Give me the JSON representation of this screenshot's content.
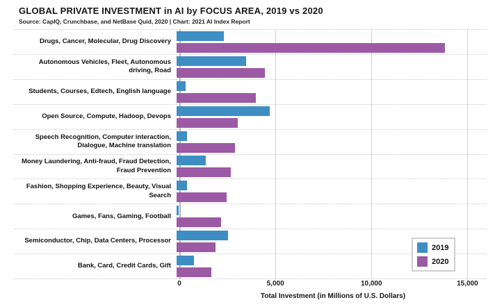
{
  "header": {
    "title": "GLOBAL PRIVATE INVESTMENT in AI by FOCUS AREA, 2019 vs 2020",
    "source": "Source: CapIQ, Crunchbase, and NetBase Quid, 2020 | Chart: 2021 AI Index Report"
  },
  "chart_data": {
    "type": "bar",
    "orientation": "horizontal",
    "title": "GLOBAL PRIVATE INVESTMENT in AI by FOCUS AREA, 2019 vs 2020",
    "xlabel": "Total Investment (in Millions of U.S. Dollars)",
    "ylabel": "",
    "xlim": [
      0,
      16000
    ],
    "grid": "vertical-solid, row-separators-dotted",
    "xticks": [
      {
        "value": 0,
        "label": "0"
      },
      {
        "value": 5000,
        "label": "5,000"
      },
      {
        "value": 10000,
        "label": "10,000"
      },
      {
        "value": 15000,
        "label": "15,000"
      }
    ],
    "categories": [
      "Drugs, Cancer, Molecular, Drug Discovery",
      "Autonomous Vehicles, Fleet, Autonomous driving, Road",
      "Students, Courses, Edtech, English language",
      "Open Source, Compute, Hadoop, Devops",
      "Speech Recognition, Computer interaction, Dialogue, Machine translation",
      "Money Laundering, Anti-fraud, Fraud Detection, Fraud Prevention",
      "Fashion, Shopping Experience, Beauty, Visual Search",
      "Games, Fans, Gaming, Football",
      "Semiconductor, Chip, Data Centers, Processor",
      "Bank, Card, Credit Cards, Gift"
    ],
    "series": [
      {
        "name": "2019",
        "color": "#3E8EC4",
        "values": [
          2450,
          3600,
          450,
          4800,
          550,
          1500,
          550,
          100,
          2650,
          900
        ]
      },
      {
        "name": "2020",
        "color": "#9C5AA4",
        "values": [
          13850,
          4550,
          4100,
          3150,
          3000,
          2800,
          2600,
          2300,
          2000,
          1800
        ]
      }
    ],
    "legend": {
      "position": "bottom-right-inside",
      "entries": [
        {
          "label": "2019",
          "color": "#3E8EC4"
        },
        {
          "label": "2020",
          "color": "#9C5AA4"
        }
      ]
    }
  }
}
